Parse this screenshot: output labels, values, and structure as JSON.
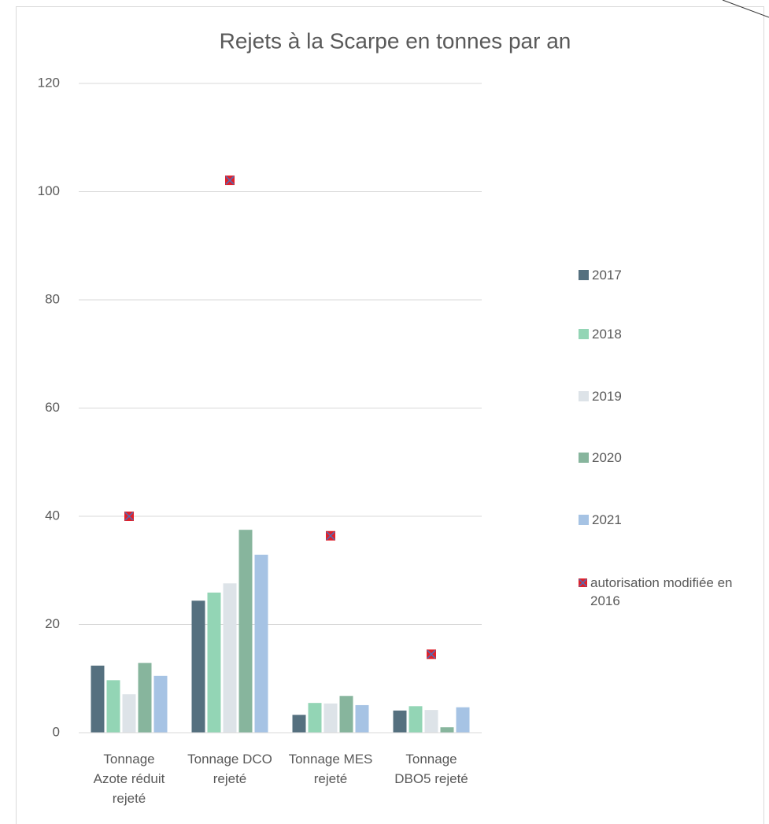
{
  "chart_data": {
    "type": "bar",
    "title": "Rejets à la Scarpe en tonnes par an",
    "categories": [
      "Tonnage Azote réduit rejeté",
      "Tonnage DCO rejeté",
      "Tonnage MES rejeté",
      "Tonnage DBO5 rejeté"
    ],
    "series": [
      {
        "name": "2017",
        "type": "bar",
        "color": "#55707f",
        "values": [
          12.4,
          24.4,
          3.3,
          4.1
        ]
      },
      {
        "name": "2018",
        "type": "bar",
        "color": "#93d5b5",
        "values": [
          9.7,
          25.9,
          5.5,
          4.9
        ]
      },
      {
        "name": "2019",
        "type": "bar",
        "color": "#dde3e8",
        "values": [
          7.1,
          27.6,
          5.4,
          4.2
        ]
      },
      {
        "name": "2020",
        "type": "bar",
        "color": "#87b59d",
        "values": [
          12.9,
          37.5,
          6.8,
          1.0
        ]
      },
      {
        "name": "2021",
        "type": "bar",
        "color": "#a6c3e4",
        "values": [
          10.5,
          32.9,
          5.1,
          4.7
        ]
      },
      {
        "name": "autorisation modifiée en 2016",
        "type": "scatter",
        "color": "#e0212b",
        "values": [
          40.0,
          102.1,
          36.4,
          14.5
        ]
      }
    ],
    "ylim": [
      0,
      120
    ],
    "yticks": [
      0,
      20,
      40,
      60,
      80,
      100,
      120
    ],
    "grid": true,
    "legend": "right"
  }
}
